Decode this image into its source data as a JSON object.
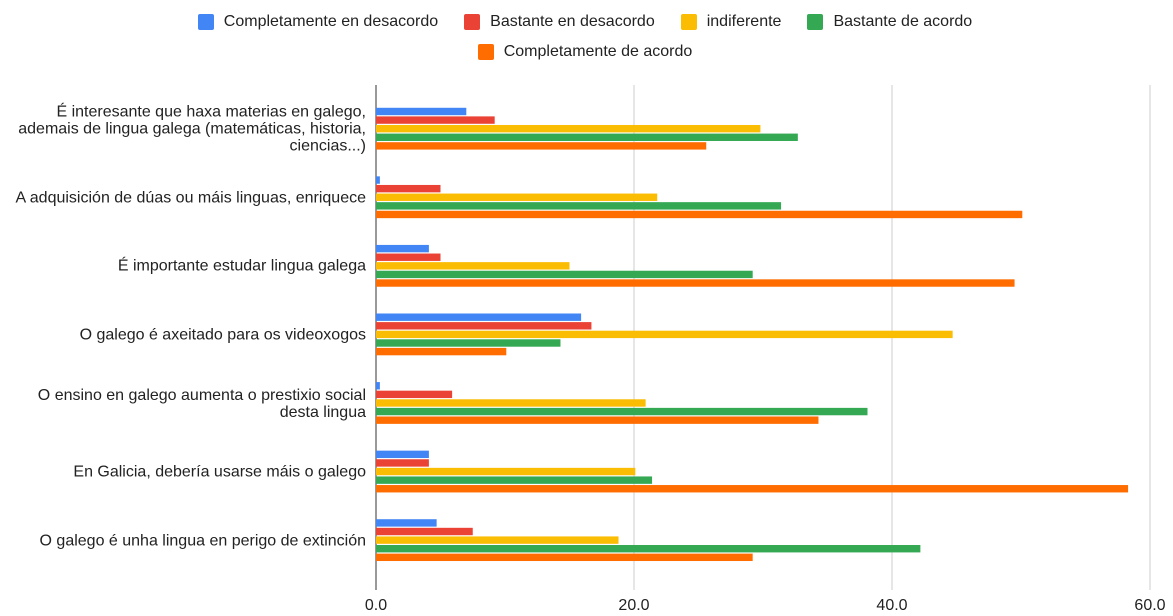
{
  "chart_data": {
    "type": "hbar",
    "categories": [
      "É interesante que haxa materias en galego, ademais de lingua galega (matemáticas, historia, ciencias...)",
      "A adquisición de dúas ou máis linguas, enriquece",
      "É importante estudar lingua galega",
      "O galego é axeitado para os videoxogos",
      "O ensino en galego aumenta o prestixio social desta lingua",
      "En Galicia, debería usarse máis o galego",
      "O galego é unha lingua en perigo de extinción"
    ],
    "series": [
      {
        "name": "Completamente en desacordo",
        "color": "#4285f4",
        "values": [
          7.0,
          0.3,
          4.1,
          15.9,
          0.3,
          4.1,
          4.7
        ]
      },
      {
        "name": "Bastante en desacordo",
        "color": "#ea4335",
        "values": [
          9.2,
          5.0,
          5.0,
          16.7,
          5.9,
          4.1,
          7.5
        ]
      },
      {
        "name": "indiferente",
        "color": "#fbbc04",
        "values": [
          29.8,
          21.8,
          15.0,
          44.7,
          20.9,
          20.1,
          18.8
        ]
      },
      {
        "name": "Bastante de acordo",
        "color": "#34a853",
        "values": [
          32.7,
          31.4,
          29.2,
          14.3,
          38.1,
          21.4,
          42.2
        ]
      },
      {
        "name": "Completamente de acordo",
        "color": "#ff6d01",
        "values": [
          25.6,
          50.1,
          49.5,
          10.1,
          34.3,
          58.3,
          29.2
        ]
      }
    ],
    "xlim": [
      0,
      60
    ],
    "xticks": [
      {
        "value": 0,
        "label": "0.0"
      },
      {
        "value": 20,
        "label": "20.0"
      },
      {
        "value": 40,
        "label": "40.0"
      },
      {
        "value": 60,
        "label": "60.0"
      }
    ],
    "grid": true,
    "legend": "top"
  }
}
